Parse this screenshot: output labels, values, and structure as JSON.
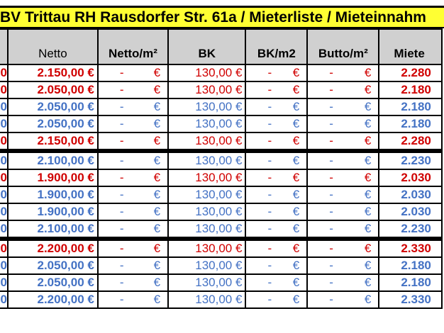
{
  "title": "BV Trittau RH Rausdorfer Str. 61a / Mieterliste / Mieteinnahm",
  "headers": [
    "",
    "Netto",
    "Netto/m²",
    "BK",
    "BK/m2",
    "Butto/m²",
    "Miete"
  ],
  "colors": {
    "red": "#d00000",
    "blue": "#4472c4",
    "title_bg": "#ffff33",
    "header_bg": "#d0d0d0"
  },
  "rows": [
    {
      "color": "red",
      "first": "0",
      "netto": "2.150,00 €",
      "netto_m2": "-",
      "bk": "130,00 €",
      "bk_m2": "-",
      "brutto_m2": "-",
      "miete": "2.280",
      "euro": "€"
    },
    {
      "color": "red",
      "first": "0",
      "netto": "2.050,00 €",
      "netto_m2": "-",
      "bk": "130,00 €",
      "bk_m2": "-",
      "brutto_m2": "-",
      "miete": "2.180",
      "euro": "€"
    },
    {
      "color": "blue",
      "first": "0",
      "netto": "2.050,00 €",
      "netto_m2": "-",
      "bk": "130,00 €",
      "bk_m2": "-",
      "brutto_m2": "-",
      "miete": "2.180",
      "euro": "€"
    },
    {
      "color": "blue",
      "first": "0",
      "netto": "2.050,00 €",
      "netto_m2": "-",
      "bk": "130,00 €",
      "bk_m2": "-",
      "brutto_m2": "-",
      "miete": "2.180",
      "euro": "€"
    },
    {
      "color": "red",
      "first": "0",
      "netto": "2.150,00 €",
      "netto_m2": "-",
      "bk": "130,00 €",
      "bk_m2": "-",
      "brutto_m2": "-",
      "miete": "2.280",
      "euro": "€"
    },
    {
      "color": "blue",
      "first": "0",
      "netto": "2.100,00 €",
      "netto_m2": "-",
      "bk": "130,00 €",
      "bk_m2": "-",
      "brutto_m2": "-",
      "miete": "2.230",
      "euro": "€",
      "group_start": true
    },
    {
      "color": "red",
      "first": "0",
      "netto": "1.900,00 €",
      "netto_m2": "-",
      "bk": "130,00 €",
      "bk_m2": "-",
      "brutto_m2": "-",
      "miete": "2.030",
      "euro": "€"
    },
    {
      "color": "blue",
      "first": "0",
      "netto": "1.900,00 €",
      "netto_m2": "-",
      "bk": "130,00 €",
      "bk_m2": "-",
      "brutto_m2": "-",
      "miete": "2.030",
      "euro": "€"
    },
    {
      "color": "blue",
      "first": "0",
      "netto": "1.900,00 €",
      "netto_m2": "-",
      "bk": "130,00 €",
      "bk_m2": "-",
      "brutto_m2": "-",
      "miete": "2.030",
      "euro": "€"
    },
    {
      "color": "blue",
      "first": "0",
      "netto": "2.100,00 €",
      "netto_m2": "-",
      "bk": "130,00 €",
      "bk_m2": "-",
      "brutto_m2": "-",
      "miete": "2.230",
      "euro": "€"
    },
    {
      "color": "red",
      "first": "0",
      "netto": "2.200,00 €",
      "netto_m2": "-",
      "bk": "130,00 €",
      "bk_m2": "-",
      "brutto_m2": "-",
      "miete": "2.330",
      "euro": "€",
      "group_start": true
    },
    {
      "color": "blue",
      "first": "0",
      "netto": "2.050,00 €",
      "netto_m2": "-",
      "bk": "130,00 €",
      "bk_m2": "-",
      "brutto_m2": "-",
      "miete": "2.180",
      "euro": "€"
    },
    {
      "color": "blue",
      "first": "0",
      "netto": "2.050,00 €",
      "netto_m2": "-",
      "bk": "130,00 €",
      "bk_m2": "-",
      "brutto_m2": "-",
      "miete": "2.180",
      "euro": "€"
    },
    {
      "color": "blue",
      "first": "0",
      "netto": "2.200,00 €",
      "netto_m2": "-",
      "bk": "130,00 €",
      "bk_m2": "-",
      "brutto_m2": "-",
      "miete": "2.330",
      "euro": "€"
    }
  ]
}
